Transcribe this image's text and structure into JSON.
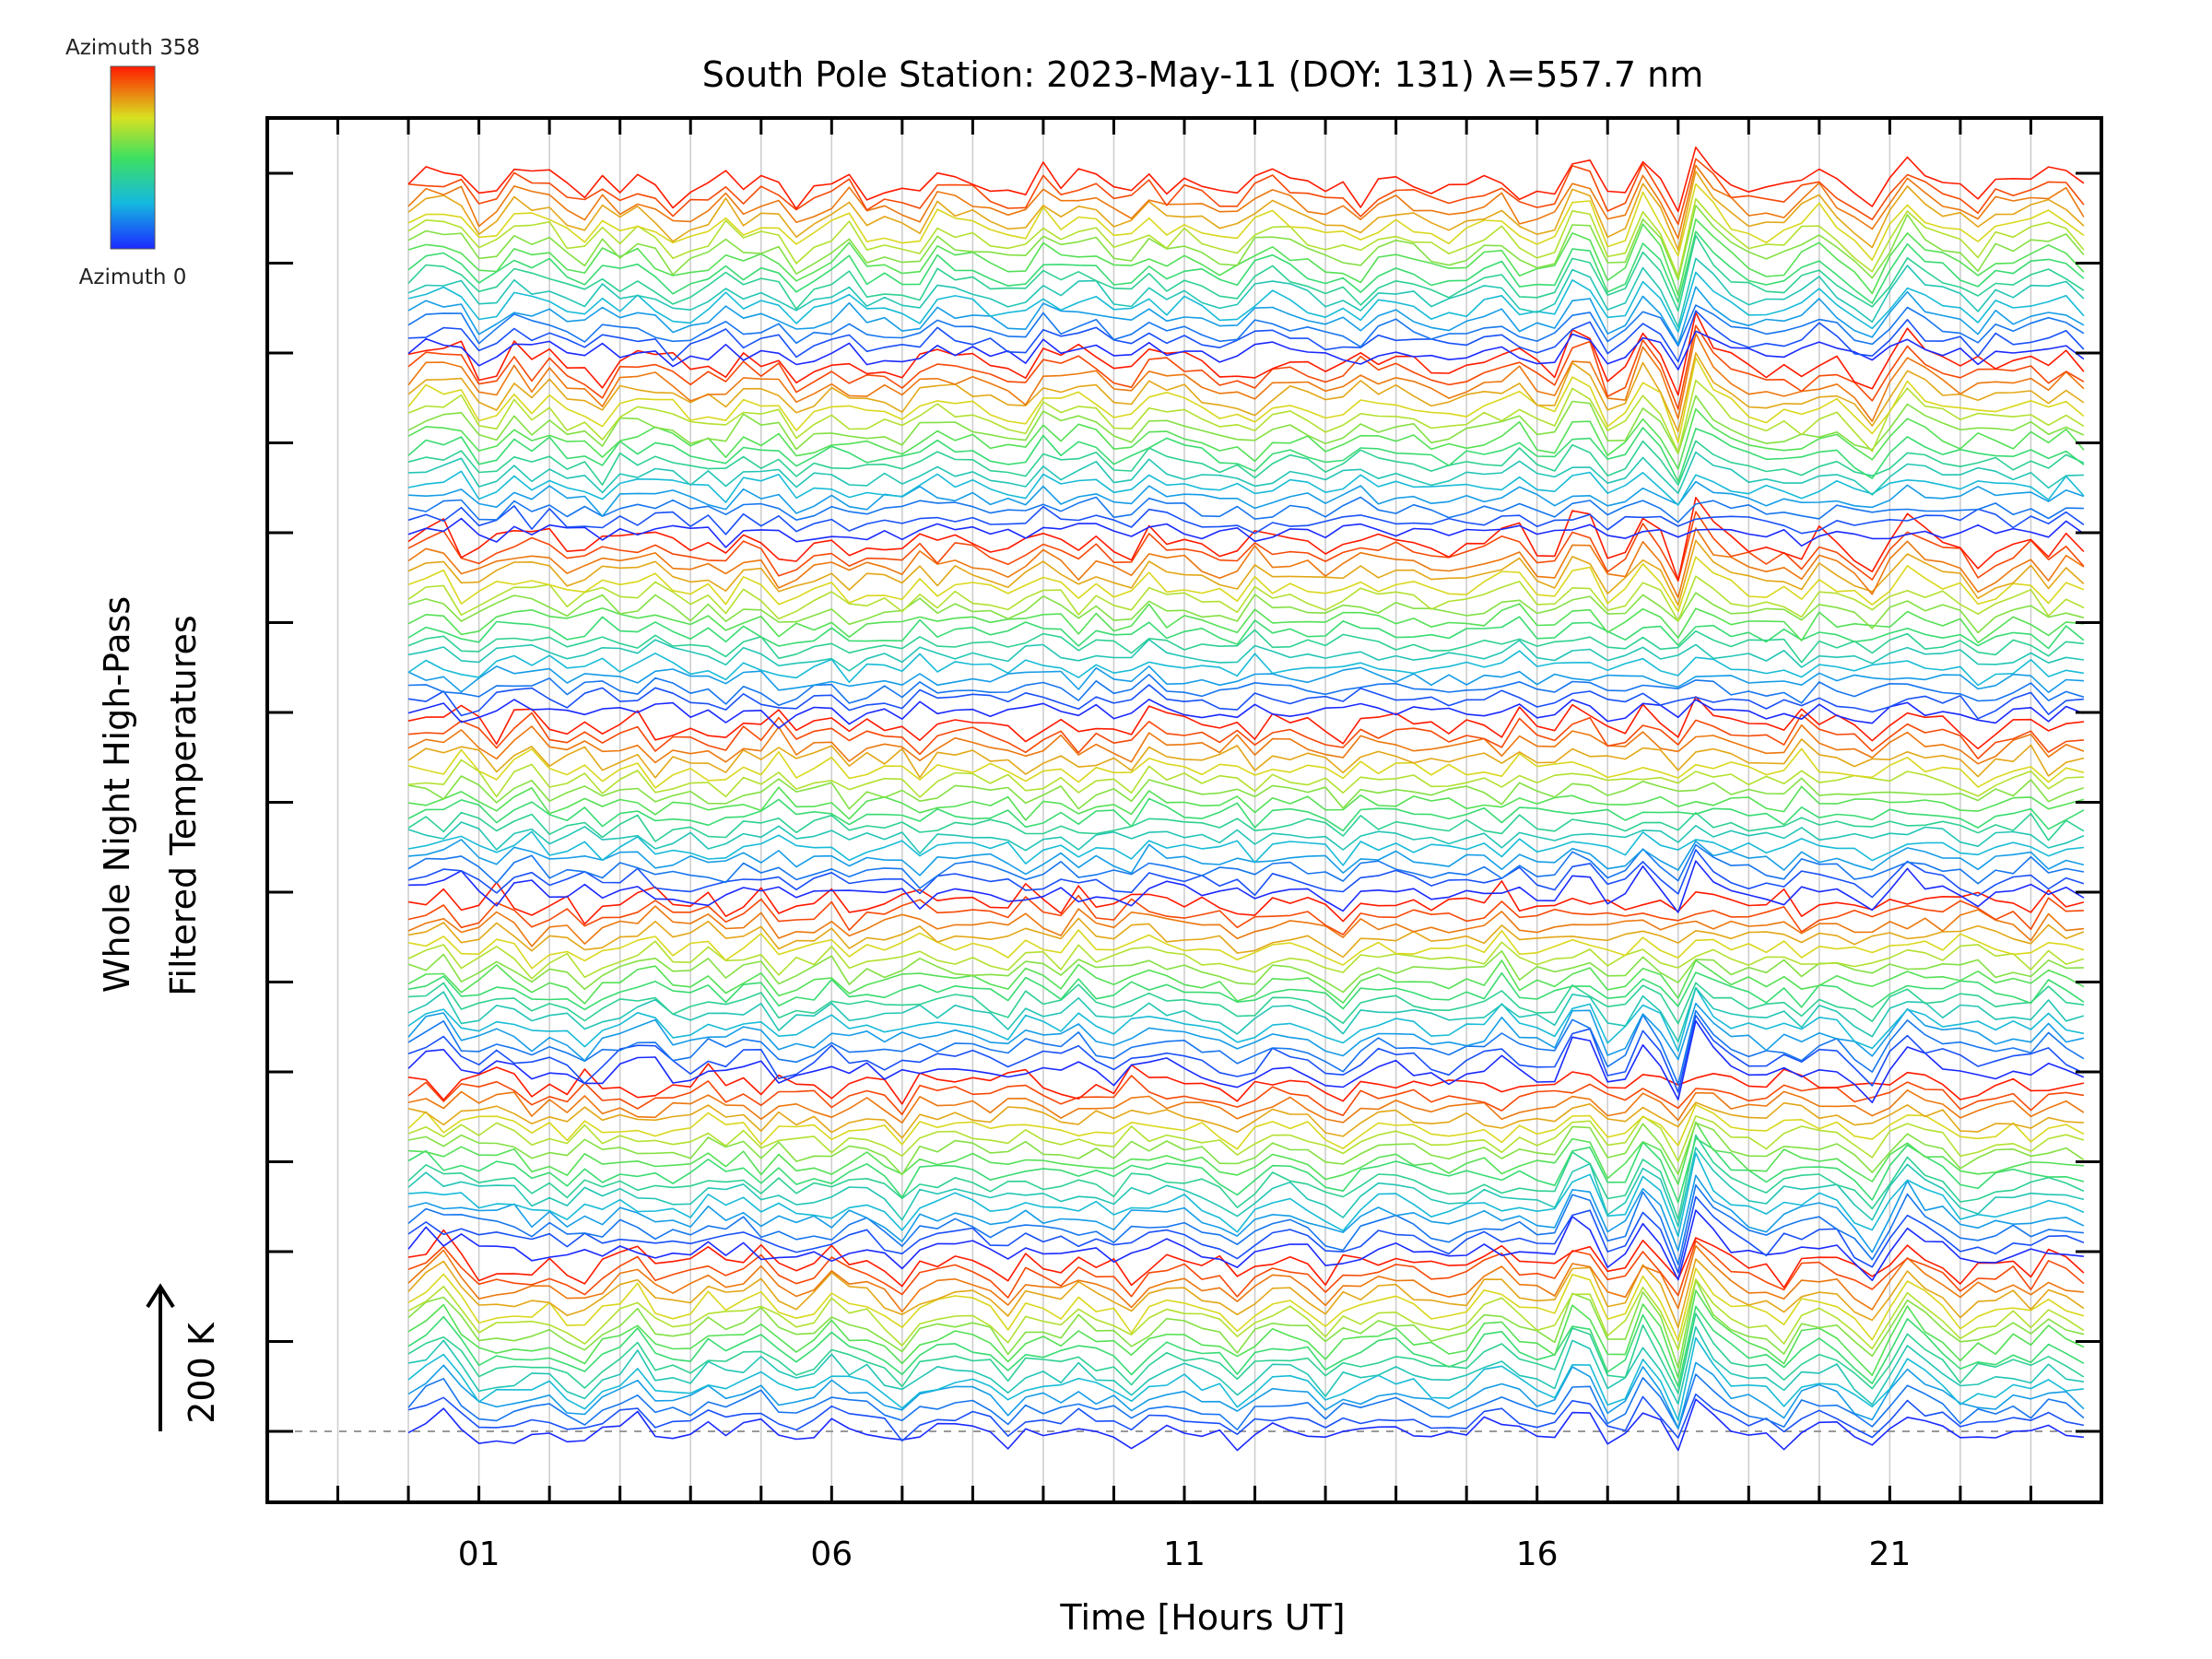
{
  "chart_data": {
    "type": "line",
    "title": "South Pole Station: 2023-May-11 (DOY: 131) λ=557.7 nm",
    "xlabel": "Time [Hours UT]",
    "ylabel_line1": "Whole Night High-Pass",
    "ylabel_line2": "Filtered Temperatures",
    "scale_label": "200 K",
    "colorbar": {
      "top_label": "Azimuth 358",
      "bottom_label": "Azimuth 0",
      "azimuth_min": 0,
      "azimuth_max": 358
    },
    "xlim": [
      -2,
      24
    ],
    "x_tick_labels": [
      "01",
      "06",
      "11",
      "16",
      "21"
    ],
    "x_tick_values": [
      1,
      6,
      11,
      16,
      21
    ],
    "data_start_hour": 0,
    "data_end_hour": 23.8,
    "data_step_hours": 0.25,
    "groups": 7,
    "traces_per_group": 16,
    "group_offset_K": 200,
    "trace_spacing_K": 12.5,
    "colors": {
      "azimuth_low": "#1030ff",
      "azimuth_high": "#ff1a00",
      "grid": "#cccccc"
    }
  }
}
